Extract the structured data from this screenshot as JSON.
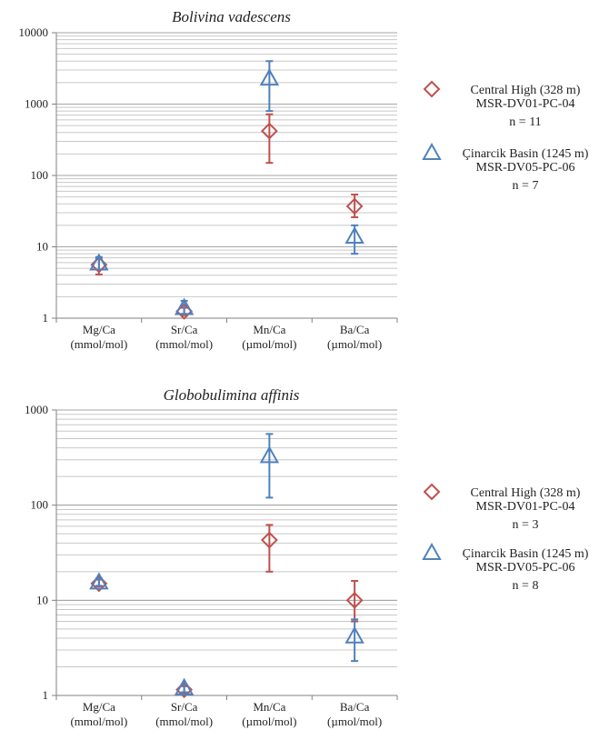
{
  "chart_data": [
    {
      "type": "scatter",
      "title": "Bolivina vadescens",
      "y_scale": "log",
      "ylim": [
        1,
        10000
      ],
      "y_tick_labels": [
        "10000",
        "1000",
        "100",
        "10",
        "1"
      ],
      "grid": true,
      "legend_position": "right",
      "categories": [
        {
          "line1": "Mg/Ca",
          "line2": "(mmol/mol)"
        },
        {
          "line1": "Sr/Ca",
          "line2": "(mmol/mol)"
        },
        {
          "line1": "Mn/Ca",
          "line2": "(µmol/mol)"
        },
        {
          "line1": "Ba/Ca",
          "line2": "(µmol/mol)"
        }
      ],
      "series": [
        {
          "legend": [
            "Central High (328 m)",
            "MSR-DV01-PC-04",
            "n = 11"
          ],
          "marker": "diamond",
          "color": "#c0504d",
          "values": [
            5.6,
            1.25,
            420,
            37
          ],
          "err_low": [
            4.1,
            1.1,
            150,
            26
          ],
          "err_high": [
            6.8,
            1.4,
            720,
            54
          ]
        },
        {
          "legend": [
            "Çinarcik Basin (1245 m)",
            "MSR-DV05-PC-06",
            "n = 7"
          ],
          "marker": "triangle",
          "color": "#4f81bd",
          "values": [
            5.9,
            1.4,
            2300,
            14
          ],
          "err_low": [
            4.8,
            1.15,
            800,
            8
          ],
          "err_high": [
            7.2,
            1.75,
            4000,
            20
          ]
        }
      ]
    },
    {
      "type": "scatter",
      "title": "Globobulimina affinis",
      "y_scale": "log",
      "ylim": [
        1,
        1000
      ],
      "y_tick_labels": [
        "1000",
        "100",
        "10",
        "1"
      ],
      "grid": true,
      "legend_position": "right",
      "categories": [
        {
          "line1": "Mg/Ca",
          "line2": "(mmol/mol)"
        },
        {
          "line1": "Sr/Ca",
          "line2": "(mmol/mol)"
        },
        {
          "line1": "Mn/Ca",
          "line2": "(µmol/mol)"
        },
        {
          "line1": "Ba/Ca",
          "line2": "(µmol/mol)"
        }
      ],
      "series": [
        {
          "legend": [
            "Central High (328 m)",
            "MSR-DV01-PC-04",
            "n = 3"
          ],
          "marker": "diamond",
          "color": "#c0504d",
          "values": [
            15,
            1.15,
            43,
            10
          ],
          "err_low": [
            14,
            1.05,
            20,
            6
          ],
          "err_high": [
            16.5,
            1.25,
            62,
            16
          ]
        },
        {
          "legend": [
            "Çinarcik Basin (1245 m)",
            "MSR-DV05-PC-06",
            "n = 8"
          ],
          "marker": "triangle",
          "color": "#4f81bd",
          "values": [
            15.5,
            1.2,
            330,
            4.2
          ],
          "err_low": [
            14.2,
            1.08,
            120,
            2.3
          ],
          "err_high": [
            17,
            1.3,
            560,
            6.3
          ]
        }
      ]
    }
  ]
}
